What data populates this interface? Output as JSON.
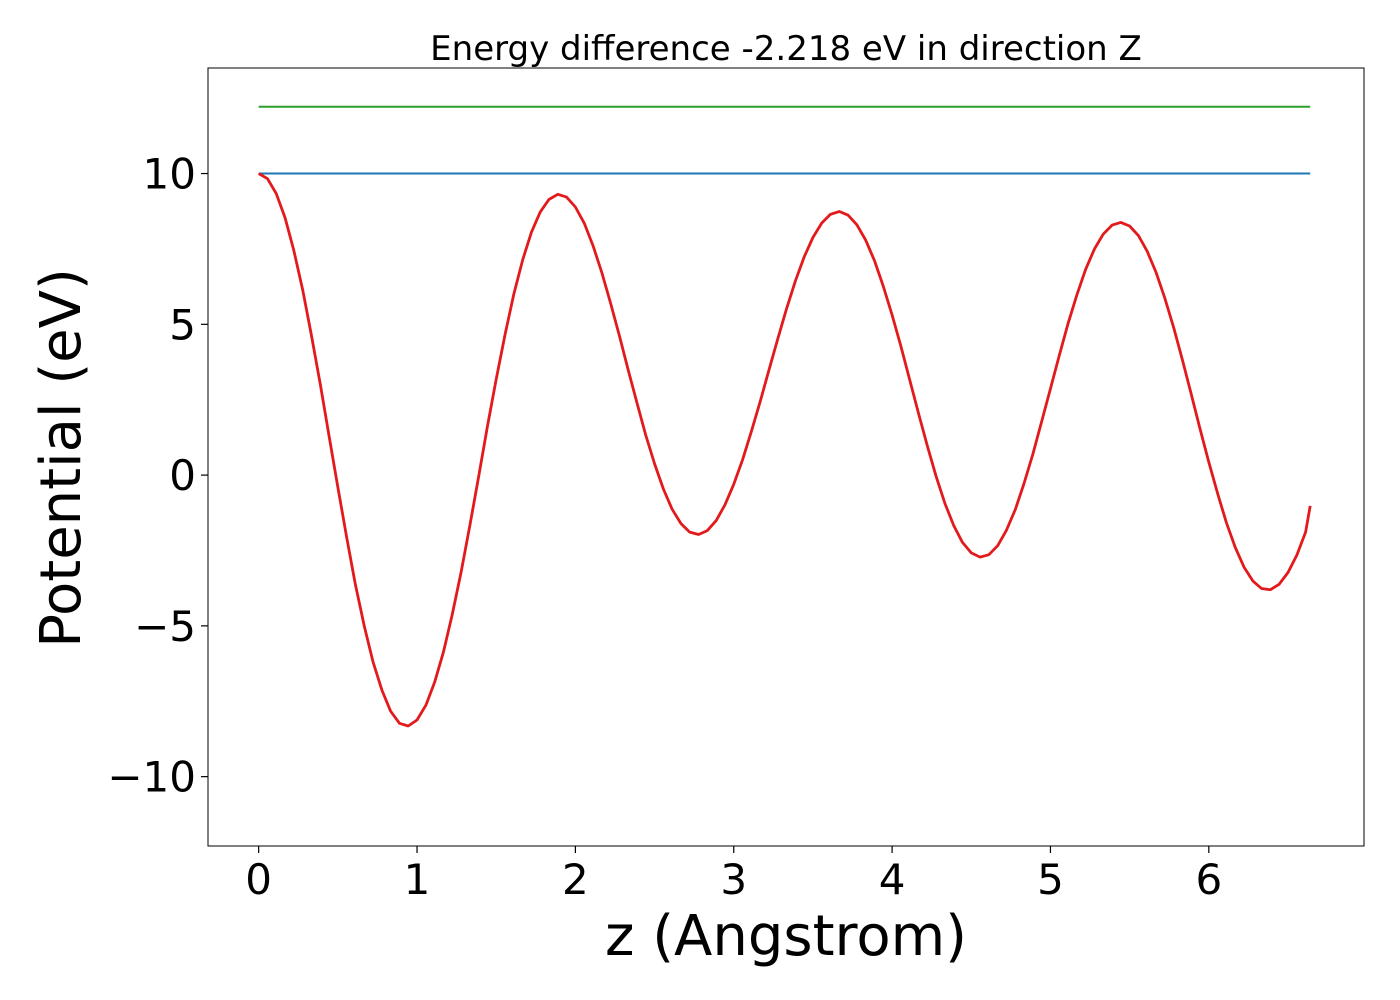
{
  "chart_data": {
    "type": "line",
    "title": "Energy difference -2.218 eV in direction Z",
    "xlabel": "z (Angstrom)",
    "ylabel": "Potential (eV)",
    "xlim": [
      -0.32,
      6.98
    ],
    "ylim": [
      -12.3,
      13.5
    ],
    "xticks": [
      0,
      1,
      2,
      3,
      4,
      5,
      6
    ],
    "yticks": [
      -10,
      -5,
      0,
      5,
      10
    ],
    "ytick_labels": [
      "−10",
      "−5",
      "0",
      "5",
      "10"
    ],
    "grid": false,
    "legend": "none",
    "series": [
      {
        "role": "potential",
        "color": "#e31a1c",
        "x": [
          0.0,
          0.056,
          0.111,
          0.167,
          0.222,
          0.278,
          0.333,
          0.389,
          0.444,
          0.5,
          0.556,
          0.611,
          0.667,
          0.722,
          0.778,
          0.833,
          0.889,
          0.944,
          1.0,
          1.056,
          1.111,
          1.167,
          1.222,
          1.278,
          1.333,
          1.389,
          1.444,
          1.5,
          1.556,
          1.611,
          1.667,
          1.722,
          1.778,
          1.833,
          1.889,
          1.944,
          2.0,
          2.056,
          2.111,
          2.167,
          2.222,
          2.278,
          2.333,
          2.389,
          2.444,
          2.5,
          2.556,
          2.611,
          2.667,
          2.722,
          2.778,
          2.833,
          2.889,
          2.944,
          3.0,
          3.056,
          3.111,
          3.167,
          3.222,
          3.278,
          3.333,
          3.389,
          3.444,
          3.5,
          3.556,
          3.611,
          3.667,
          3.722,
          3.778,
          3.833,
          3.889,
          3.944,
          4.0,
          4.056,
          4.111,
          4.167,
          4.222,
          4.278,
          4.333,
          4.389,
          4.444,
          4.5,
          4.556,
          4.611,
          4.667,
          4.722,
          4.778,
          4.833,
          4.889,
          4.944,
          5.0,
          5.056,
          5.111,
          5.167,
          5.222,
          5.278,
          5.333,
          5.389,
          5.444,
          5.5,
          5.556,
          5.611,
          5.667,
          5.722,
          5.778,
          5.833,
          5.889,
          5.944,
          6.0,
          6.056,
          6.111,
          6.167,
          6.222,
          6.278,
          6.333,
          6.389,
          6.444,
          6.5,
          6.556,
          6.611,
          6.64
        ],
        "y": [
          10.0,
          9.83,
          9.33,
          8.53,
          7.45,
          6.14,
          4.64,
          3.01,
          1.31,
          -0.41,
          -2.07,
          -3.63,
          -5.01,
          -6.19,
          -7.13,
          -7.83,
          -8.23,
          -8.32,
          -8.12,
          -7.63,
          -6.87,
          -5.86,
          -4.63,
          -3.22,
          -1.68,
          -0.06,
          1.59,
          3.18,
          4.67,
          6.0,
          7.14,
          8.05,
          8.72,
          9.14,
          9.31,
          9.22,
          8.89,
          8.35,
          7.61,
          6.72,
          5.71,
          4.62,
          3.5,
          2.39,
          1.33,
          0.37,
          -0.46,
          -1.13,
          -1.61,
          -1.89,
          -1.97,
          -1.84,
          -1.51,
          -0.99,
          -0.31,
          0.51,
          1.44,
          2.44,
          3.48,
          4.52,
          5.51,
          6.43,
          7.23,
          7.88,
          8.36,
          8.65,
          8.74,
          8.62,
          8.3,
          7.79,
          7.11,
          6.27,
          5.31,
          4.26,
          3.16,
          2.05,
          0.97,
          -0.04,
          -0.93,
          -1.67,
          -2.23,
          -2.58,
          -2.72,
          -2.64,
          -2.34,
          -1.83,
          -1.14,
          -0.28,
          0.7,
          1.77,
          2.87,
          3.97,
          5.02,
          5.98,
          6.82,
          7.5,
          7.99,
          8.29,
          8.38,
          8.26,
          7.94,
          7.42,
          6.72,
          5.87,
          4.89,
          3.82,
          2.69,
          1.55,
          0.43,
          -0.62,
          -1.58,
          -2.4,
          -3.05,
          -3.51,
          -3.76,
          -3.8,
          -3.62,
          -3.23,
          -2.65,
          -1.89,
          -1.02
        ]
      },
      {
        "role": "reference-blue",
        "color": "#1f77b4",
        "x": [
          0.0,
          6.64
        ],
        "y": [
          10.0,
          10.0
        ]
      },
      {
        "role": "reference-green",
        "color": "#2ca02c",
        "x": [
          0.0,
          6.64
        ],
        "y": [
          12.218,
          12.218
        ]
      }
    ]
  }
}
